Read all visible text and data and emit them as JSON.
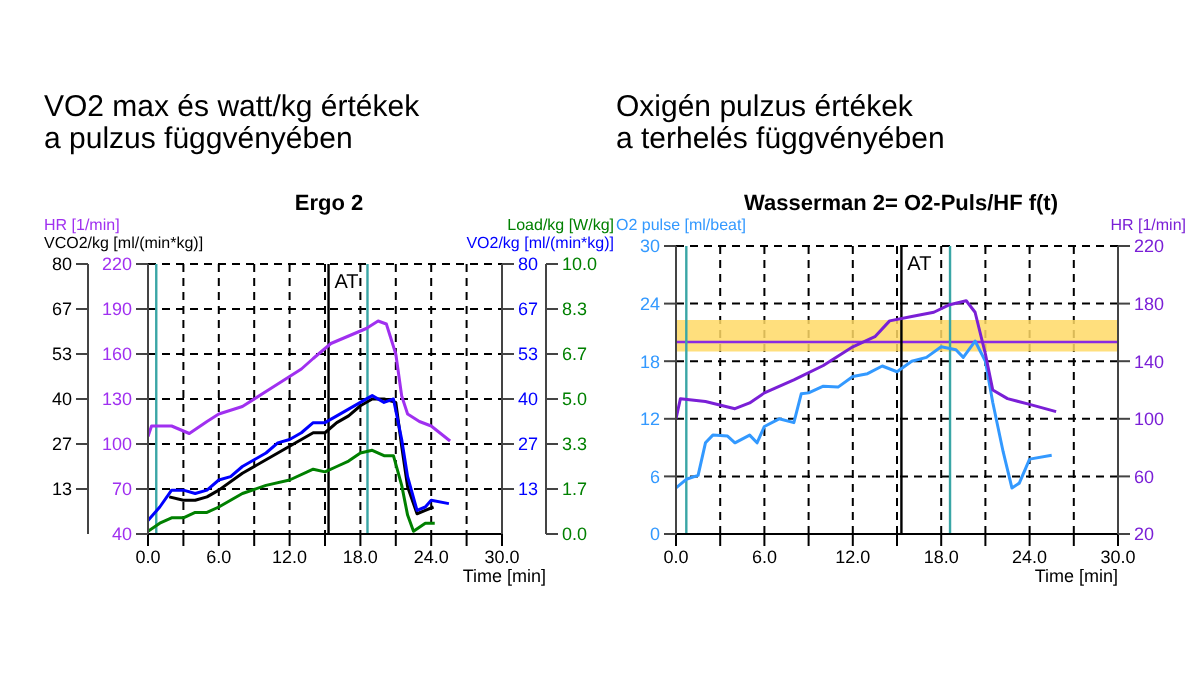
{
  "chart_data": [
    {
      "type": "line",
      "title": "VO2 max és watt/kg értékek\na pulzus függvényében",
      "subtitle": "Ergo 2",
      "xlabel": "Time [min]",
      "ylabel": "HR [1/min]",
      "y2label": "VO2/kg [ml/(min*kg)]",
      "y3label": "Load/kg [W/kg]",
      "annotations": [
        "VCO2/kg [ml/(min*kg)]"
      ],
      "xlim": [
        0,
        30
      ],
      "xticks": [
        {
          "value": 0,
          "label": "0.0"
        },
        {
          "value": 3,
          "label": null
        },
        {
          "value": 6,
          "label": "6.0"
        },
        {
          "value": 9,
          "label": null
        },
        {
          "value": 12,
          "label": "12.0"
        },
        {
          "value": 15,
          "label": null
        },
        {
          "value": 18,
          "label": "18.0"
        },
        {
          "value": 21,
          "label": null
        },
        {
          "value": 24,
          "label": "24.0"
        },
        {
          "value": 27,
          "label": null
        },
        {
          "value": 30,
          "label": "30.0"
        }
      ],
      "ylim": [
        40,
        220
      ],
      "yticks": [
        40,
        70,
        100,
        130,
        160,
        190,
        220
      ],
      "y2lim": [
        0,
        80
      ],
      "y2ticks": [
        {
          "value": 13.33,
          "label": "13"
        },
        {
          "value": 26.67,
          "label": "27"
        },
        {
          "value": 40,
          "label": "40"
        },
        {
          "value": 53.33,
          "label": "53"
        },
        {
          "value": 66.67,
          "label": "67"
        },
        {
          "value": 80,
          "label": "80"
        }
      ],
      "y3lim": [
        0,
        10
      ],
      "y3ticks": [
        {
          "value": 0,
          "label": "0.0"
        },
        {
          "value": 1.667,
          "label": "1.7"
        },
        {
          "value": 3.333,
          "label": "3.3"
        },
        {
          "value": 5,
          "label": "5.0"
        },
        {
          "value": 6.667,
          "label": "6.7"
        },
        {
          "value": 8.333,
          "label": "8.3"
        },
        {
          "value": 10,
          "label": "10.0"
        }
      ],
      "grid": true,
      "ref_lines": [
        {
          "axis": "x",
          "value": 0.7,
          "color": "#3aa6a6"
        },
        {
          "axis": "x",
          "value": 15.3,
          "label": "AT",
          "color": "#000000"
        },
        {
          "axis": "x",
          "value": 18.6,
          "color": "#3aa6a6"
        }
      ],
      "series": [
        {
          "color": "#a030f0",
          "x": [
            0,
            0.3,
            2,
            3.5,
            5,
            6,
            8,
            10,
            12,
            13,
            14,
            15.5,
            17,
            18.5,
            19.5,
            20.2,
            21,
            21.5,
            22,
            23,
            24,
            25.6
          ],
          "values": [
            105,
            112,
            112,
            107,
            115,
            120,
            125,
            135,
            145,
            150,
            157,
            167,
            172,
            177,
            182,
            180,
            160,
            132,
            120,
            115,
            112,
            102
          ]
        },
        {
          "color": "#000000",
          "axis": "y2",
          "x": [
            1.8,
            3,
            4,
            5,
            6,
            8,
            10,
            12,
            14,
            15,
            16,
            17,
            18,
            19,
            20,
            21,
            21.5,
            22,
            22.8,
            23.5,
            24.2
          ],
          "values": [
            11,
            10,
            10,
            11,
            13,
            18,
            22,
            26,
            30,
            30,
            33,
            35,
            38,
            40,
            40,
            39,
            26,
            14,
            6,
            7,
            8
          ]
        },
        {
          "color": "#0000ff",
          "axis": "y2",
          "x": [
            0,
            1,
            2,
            3,
            4,
            5,
            6,
            7,
            8,
            9,
            10,
            11,
            12,
            13,
            14,
            15,
            16,
            17,
            18,
            19,
            20,
            20.8,
            21.5,
            22,
            22.8,
            23.5,
            24,
            25.5
          ],
          "values": [
            4,
            8,
            13,
            13,
            12,
            13,
            16,
            17,
            20,
            22,
            24,
            27,
            28,
            30,
            33,
            33,
            35,
            37,
            39,
            41,
            39,
            40,
            28,
            17,
            7,
            8,
            10,
            9
          ]
        },
        {
          "color": "#008000",
          "axis": "y3",
          "x": [
            0,
            1,
            2,
            3,
            4,
            5,
            6,
            8,
            10,
            12,
            14,
            15,
            16,
            17,
            18,
            19,
            20,
            20.8,
            21.5,
            22,
            22.5,
            23.5,
            24.3
          ],
          "values": [
            0.1,
            0.4,
            0.6,
            0.6,
            0.8,
            0.8,
            1,
            1.5,
            1.8,
            2,
            2.4,
            2.3,
            2.5,
            2.7,
            3,
            3.1,
            2.9,
            2.9,
            1.8,
            0.7,
            0.1,
            0.4,
            0.4
          ]
        }
      ]
    },
    {
      "type": "line",
      "title": "Oxigén pulzus értékek\na terhelés függvényében",
      "subtitle": "Wasserman 2= O2-Puls/HF f(t)",
      "xlabel": "Time [min]",
      "ylabel": "O2 pulse [ml/beat]",
      "y2label": "HR [1/min]",
      "xlim": [
        0,
        30
      ],
      "xticks": [
        {
          "value": 0,
          "label": "0.0"
        },
        {
          "value": 3,
          "label": null
        },
        {
          "value": 6,
          "label": "6.0"
        },
        {
          "value": 9,
          "label": null
        },
        {
          "value": 12,
          "label": "12.0"
        },
        {
          "value": 15,
          "label": null
        },
        {
          "value": 18,
          "label": "18.0"
        },
        {
          "value": 21,
          "label": null
        },
        {
          "value": 24,
          "label": "24.0"
        },
        {
          "value": 27,
          "label": null
        },
        {
          "value": 30,
          "label": "30.0"
        }
      ],
      "ylim": [
        0,
        30
      ],
      "yticks": [
        0,
        6,
        12,
        18,
        24,
        30
      ],
      "y2lim": [
        20,
        220
      ],
      "y2ticks": [
        20,
        60,
        100,
        140,
        180,
        220
      ],
      "grid": true,
      "bands": [
        {
          "axis": "y",
          "from": 19,
          "to": 22.3,
          "color": "#ffd966"
        }
      ],
      "ref_lines": [
        {
          "axis": "y",
          "value": 20,
          "color": "#8a2be2"
        },
        {
          "axis": "x",
          "value": 0.7,
          "color": "#3aa6a6"
        },
        {
          "axis": "x",
          "value": 15.3,
          "label": "AT",
          "color": "#000000"
        },
        {
          "axis": "x",
          "value": 18.6,
          "color": "#3aa6a6"
        }
      ],
      "series": [
        {
          "color": "#3399ff",
          "x": [
            0,
            0.7,
            1.5,
            2,
            2.5,
            3.5,
            4,
            5,
            5.5,
            6,
            7,
            8,
            8.5,
            9,
            10,
            11,
            12,
            13,
            14,
            15,
            16,
            17,
            18,
            19,
            19.5,
            20.3,
            21,
            21.5,
            22.2,
            22.8,
            23.3,
            24,
            25.5
          ],
          "values": [
            4.8,
            5.7,
            6.1,
            9.5,
            10.3,
            10.2,
            9.5,
            10.3,
            9.5,
            11.2,
            12,
            11.6,
            14.6,
            14.7,
            15.4,
            15.3,
            16.4,
            16.7,
            17.5,
            16.9,
            18,
            18.4,
            19.5,
            19.2,
            18.4,
            20.1,
            18,
            13.7,
            8.6,
            4.8,
            5.3,
            7.8,
            8.2
          ]
        },
        {
          "color": "#7a1fd6",
          "axis": "y2",
          "x": [
            0,
            0.3,
            2,
            4,
            5,
            6,
            8,
            10,
            12,
            13.5,
            14.5,
            16,
            17.5,
            18.5,
            19.7,
            20.3,
            21,
            21.5,
            22.5,
            24,
            25.8
          ],
          "values": [
            100,
            114,
            112,
            107,
            111,
            118,
            127,
            137,
            150,
            157,
            168,
            171,
            174,
            179,
            182,
            174,
            145,
            120,
            114,
            110,
            105
          ]
        }
      ]
    }
  ]
}
